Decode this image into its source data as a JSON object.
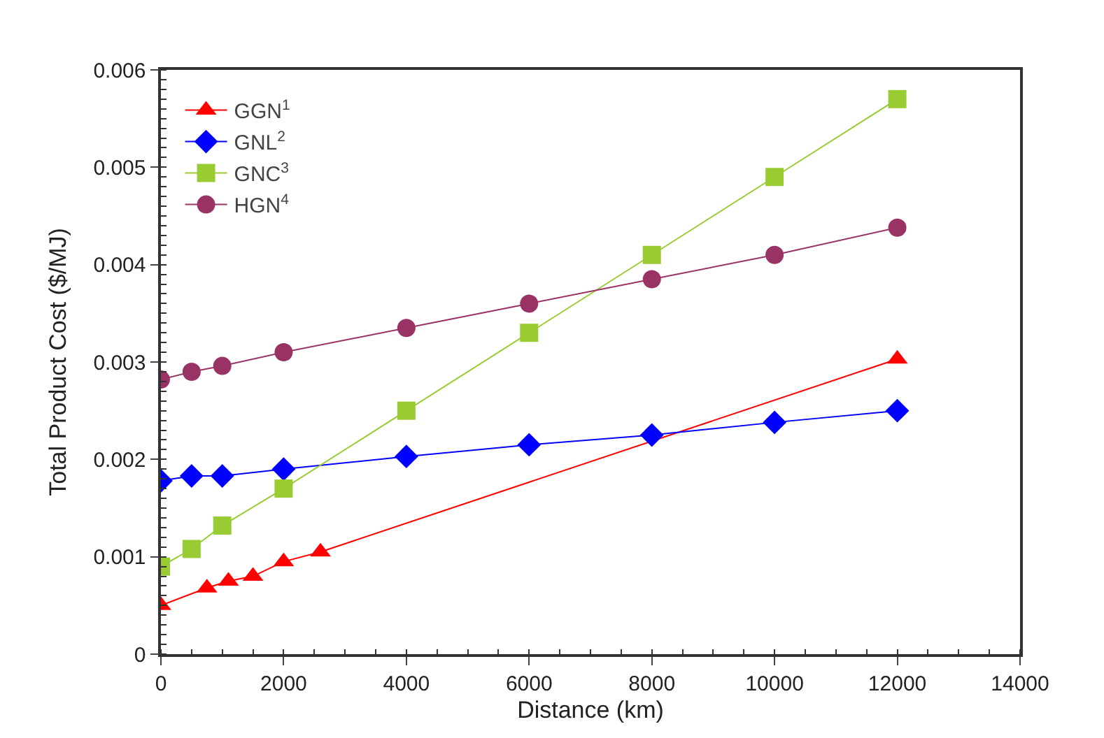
{
  "chart_data": {
    "type": "line",
    "xlabel": "Distance (km)",
    "ylabel": "Total Product Cost ($/MJ)",
    "xlim": [
      0,
      14000
    ],
    "xticks": [
      0,
      2000,
      4000,
      6000,
      8000,
      10000,
      12000,
      14000
    ],
    "ylim": [
      0,
      0.006
    ],
    "yticks": [
      0,
      0.001,
      0.002,
      0.003,
      0.004,
      0.005,
      0.006
    ],
    "legend": "top left",
    "series": [
      {
        "name": "GGN$^{1}$",
        "color": "#ff0000",
        "marker": "triangle",
        "x": [
          0,
          750,
          1100,
          1500,
          2000,
          2600,
          12000
        ],
        "values": [
          0.0005,
          0.00068,
          0.00075,
          0.0008,
          0.00095,
          0.00105,
          0.00303
        ]
      },
      {
        "name": "GNL$^{2}$",
        "color": "#0000ff",
        "marker": "diamond",
        "x": [
          0,
          500,
          1000,
          2000,
          4000,
          6000,
          8000,
          10000,
          12000
        ],
        "values": [
          0.00178,
          0.00183,
          0.00183,
          0.0019,
          0.00203,
          0.00215,
          0.00225,
          0.00238,
          0.0025
        ]
      },
      {
        "name": "GNC$^{3}$",
        "color": "#99cc33",
        "marker": "square",
        "x": [
          0,
          500,
          1000,
          2000,
          4000,
          6000,
          8000,
          10000,
          12000
        ],
        "values": [
          0.0009,
          0.00108,
          0.00132,
          0.0017,
          0.0025,
          0.0033,
          0.0041,
          0.0049,
          0.0057
        ]
      },
      {
        "name": "HGN$^{4}$",
        "color": "#993366",
        "marker": "circle",
        "x": [
          0,
          500,
          1000,
          2000,
          4000,
          6000,
          8000,
          10000,
          12000
        ],
        "values": [
          0.00282,
          0.0029,
          0.00296,
          0.0031,
          0.00335,
          0.0036,
          0.00385,
          0.0041,
          0.00438
        ]
      }
    ]
  }
}
